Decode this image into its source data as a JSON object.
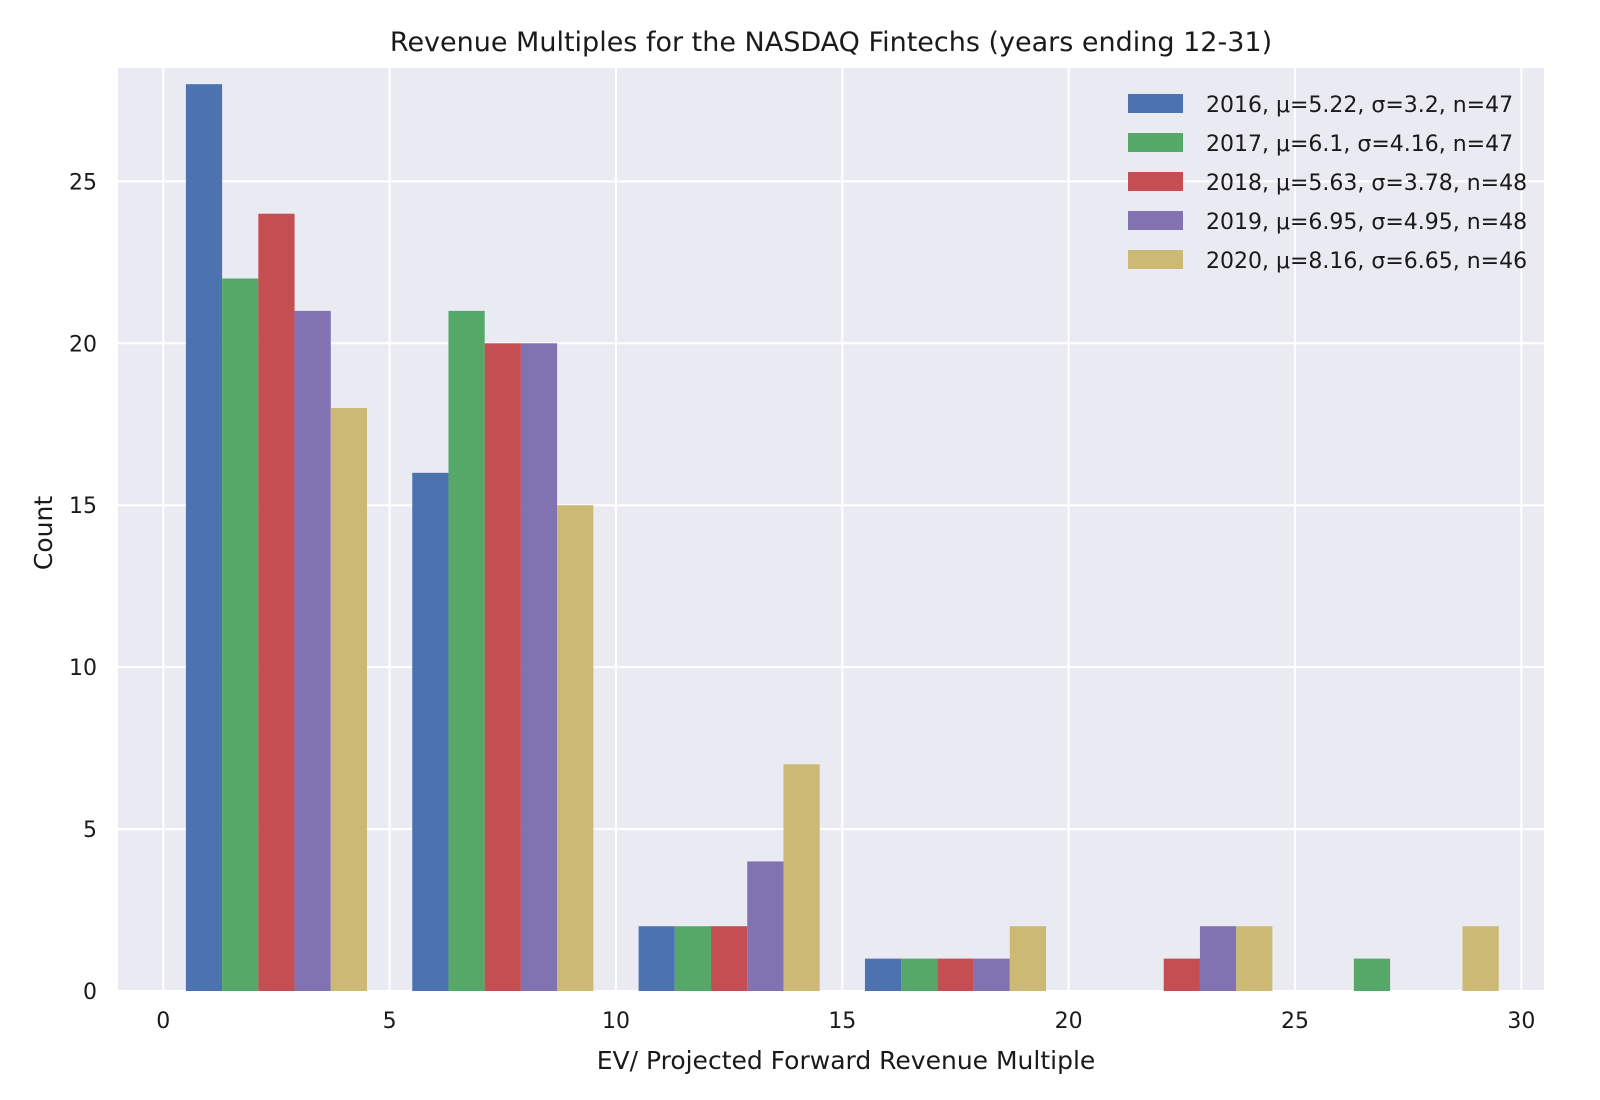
{
  "chart_data": {
    "type": "bar",
    "title": "Revenue Multiples for the NASDAQ Fintechs (years ending 12-31)",
    "xlabel": "EV/ Projected Forward Revenue Multiple",
    "ylabel": "Count",
    "xlim": [
      -1,
      30.5
    ],
    "ylim": [
      0,
      28.5
    ],
    "grid": true,
    "legend_position": "top-right",
    "x_ticks": [
      0,
      5,
      10,
      15,
      20,
      25,
      30
    ],
    "y_ticks": [
      0,
      5,
      10,
      15,
      20,
      25
    ],
    "bin_edges": [
      0.5,
      5.5,
      10.5,
      15.5,
      20.5,
      25.5,
      30.5
    ],
    "bins": [
      {
        "left": 0.5,
        "right": 5.5
      },
      {
        "left": 5.5,
        "right": 10.5
      },
      {
        "left": 10.5,
        "right": 15.5
      },
      {
        "left": 15.5,
        "right": 20.5
      },
      {
        "left": 20.5,
        "right": 25.5
      },
      {
        "left": 25.5,
        "right": 30.5
      }
    ],
    "series": [
      {
        "name": "2016",
        "legend_label": "2016, μ=5.22, σ=3.2, n=47",
        "color": "#4C72B0",
        "values": [
          28,
          16,
          2,
          1,
          0,
          0
        ]
      },
      {
        "name": "2017",
        "legend_label": "2017, μ=6.1, σ=4.16, n=47",
        "color": "#55A868",
        "values": [
          22,
          21,
          2,
          1,
          0,
          1
        ]
      },
      {
        "name": "2018",
        "legend_label": "2018, μ=5.63, σ=3.78, n=48",
        "color": "#C44E52",
        "values": [
          24,
          20,
          2,
          1,
          1,
          0
        ]
      },
      {
        "name": "2019",
        "legend_label": "2019, μ=6.95, σ=4.95, n=48",
        "color": "#8172B2",
        "values": [
          21,
          20,
          4,
          1,
          2,
          0
        ]
      },
      {
        "name": "2020",
        "legend_label": "2020, μ=8.16, σ=6.65, n=46",
        "color": "#CCB974",
        "values": [
          18,
          15,
          7,
          2,
          2,
          2
        ]
      }
    ]
  }
}
